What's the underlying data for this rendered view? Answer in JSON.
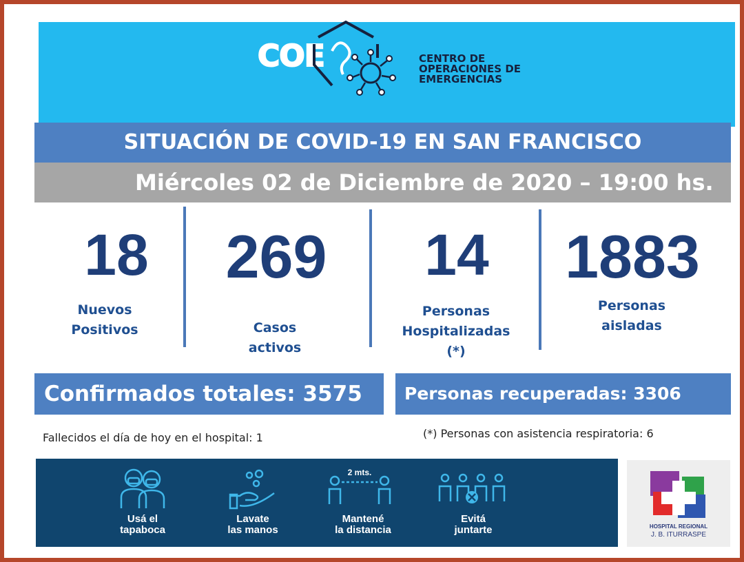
{
  "header": {
    "logo_text": "COE",
    "org_line1": "CENTRO DE",
    "org_line2": "OPERACIONES DE",
    "org_line3": "EMERGENCIAS",
    "bg_color": "#23b9ef"
  },
  "title": "SITUACIÓN DE COVID-19 EN SAN FRANCISCO",
  "date": "Miércoles 02 de Diciembre de 2020 – 19:00 hs.",
  "stats": {
    "new_positive": {
      "value": "18",
      "line1": "Nuevos",
      "line2": "Positivos"
    },
    "active": {
      "value": "269",
      "line1": "Casos",
      "line2": "activos"
    },
    "hospitalized": {
      "value": "14",
      "line1": "Personas",
      "line2": "Hospitalizadas",
      "line3": "(*)"
    },
    "isolated": {
      "value": "1883",
      "line1": "Personas",
      "line2": "aisladas"
    }
  },
  "confirmed": "Confirmados totales: 3575",
  "recovered": "Personas recuperadas: 3306",
  "notes": {
    "deaths": "Fallecidos el día de hoy en el hospital: 1",
    "respiratory": "(*) Personas con asistencia respiratoria: 6"
  },
  "tips": [
    {
      "icon": "mask-people-icon",
      "line1": "Usá el",
      "line2": "tapaboca"
    },
    {
      "icon": "wash-hands-icon",
      "line1": "Lavate",
      "line2": "las manos"
    },
    {
      "icon": "distance-icon",
      "line1": "Mantené",
      "line2": "la distancia",
      "badge": "2 mts."
    },
    {
      "icon": "no-gathering-icon",
      "line1": "Evitá",
      "line2": "juntarte"
    }
  ],
  "hospital": {
    "line1": "HOSPITAL REGIONAL",
    "line2": "J. B. ITURRASPE"
  },
  "colors": {
    "frame": "#b5462a",
    "accent_blue": "#4e80c2",
    "number_blue": "#1f3e78",
    "banner": "#10456e",
    "gray": "#a6a6a6"
  }
}
